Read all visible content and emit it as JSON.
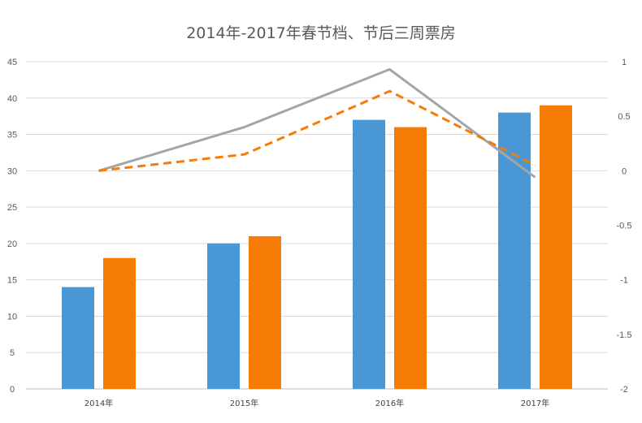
{
  "chart_data": {
    "type": "bar",
    "title": "2014年-2017年春节档、节后三周票房",
    "categories": [
      "2014年",
      "2015年",
      "2016年",
      "2017年"
    ],
    "ylim": [
      0,
      45
    ],
    "y_ticks": [
      "0",
      "5",
      "10",
      "15",
      "20",
      "25",
      "30",
      "35",
      "40",
      "45"
    ],
    "y2lim": [
      -2,
      1
    ],
    "y2_ticks": [
      "-2",
      "-1.5",
      "-1",
      "-0.5",
      "0",
      "0.5",
      "1"
    ],
    "grid": true,
    "series": [
      {
        "values": [
          14,
          20,
          37,
          38
        ],
        "color": "#4a97d6",
        "kind": "bar"
      },
      {
        "values": [
          18,
          21,
          36,
          39
        ],
        "color": "#f77b07",
        "kind": "bar"
      },
      {
        "values": [
          0,
          0.4,
          0.93,
          -0.06
        ],
        "color": "#a5a5a5",
        "kind": "line",
        "axis": "right",
        "style": "solid"
      },
      {
        "values": [
          0,
          0.15,
          0.73,
          0.05
        ],
        "color": "#f77b07",
        "kind": "line",
        "axis": "right",
        "style": "dashed"
      }
    ]
  }
}
